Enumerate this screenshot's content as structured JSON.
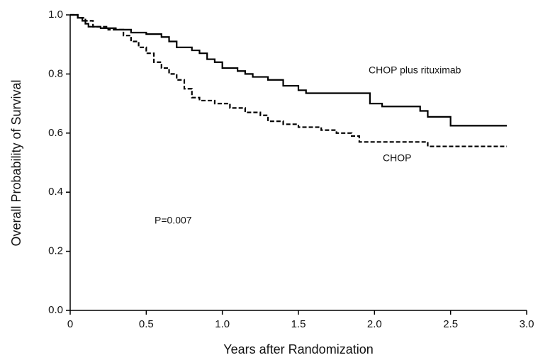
{
  "chart_data": {
    "type": "step",
    "x_label": "Years after Randomization",
    "y_label": "Overall Probability of Survival",
    "annotation": "P=0.007",
    "xlim": [
      0,
      3
    ],
    "ylim": [
      0,
      1
    ],
    "xticks": [
      0,
      0.5,
      {
        "value": 1,
        "label": "1.0"
      },
      1.5,
      {
        "value": 2,
        "label": "2.0"
      },
      2.5,
      {
        "value": 3,
        "label": "3.0"
      }
    ],
    "yticks": [
      {
        "value": 0,
        "label": "0.0"
      },
      0.2,
      0.4,
      0.6,
      0.8,
      {
        "value": 1,
        "label": "1.0"
      }
    ],
    "series": [
      {
        "name": "CHOP plus rituximab",
        "color": "#000000",
        "dash": false,
        "x": [
          0,
          0.05,
          0.08,
          0.1,
          0.12,
          0.2,
          0.3,
          0.4,
          0.5,
          0.6,
          0.65,
          0.7,
          0.8,
          0.85,
          0.9,
          0.95,
          1.0,
          1.1,
          1.15,
          1.2,
          1.3,
          1.4,
          1.5,
          1.55,
          1.97,
          2.05,
          2.2,
          2.3,
          2.35,
          2.5,
          2.87
        ],
        "values": [
          1.0,
          0.99,
          0.98,
          0.97,
          0.96,
          0.955,
          0.95,
          0.94,
          0.935,
          0.925,
          0.91,
          0.89,
          0.88,
          0.87,
          0.85,
          0.84,
          0.82,
          0.81,
          0.8,
          0.79,
          0.78,
          0.76,
          0.745,
          0.735,
          0.7,
          0.69,
          0.69,
          0.675,
          0.655,
          0.625,
          0.625
        ]
      },
      {
        "name": "CHOP",
        "color": "#000000",
        "dash": true,
        "x": [
          0,
          0.05,
          0.1,
          0.15,
          0.25,
          0.35,
          0.4,
          0.45,
          0.5,
          0.55,
          0.6,
          0.65,
          0.7,
          0.75,
          0.8,
          0.85,
          0.95,
          1.05,
          1.15,
          1.25,
          1.3,
          1.4,
          1.5,
          1.65,
          1.75,
          1.85,
          1.9,
          2.35,
          2.87
        ],
        "values": [
          1.0,
          0.99,
          0.98,
          0.96,
          0.95,
          0.93,
          0.91,
          0.89,
          0.87,
          0.84,
          0.82,
          0.8,
          0.78,
          0.75,
          0.72,
          0.71,
          0.7,
          0.685,
          0.67,
          0.66,
          0.64,
          0.63,
          0.62,
          0.61,
          0.6,
          0.59,
          0.57,
          0.555,
          0.555
        ]
      }
    ]
  }
}
